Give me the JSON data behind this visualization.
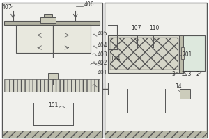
{
  "bg_color": "#f5f5f0",
  "line_color": "#555555",
  "fill_light": "#d8d8d0",
  "fill_dark": "#aaaaaa",
  "fill_medium": "#c0c0b8",
  "figsize": [
    3.0,
    2.0
  ],
  "dpi": 100
}
